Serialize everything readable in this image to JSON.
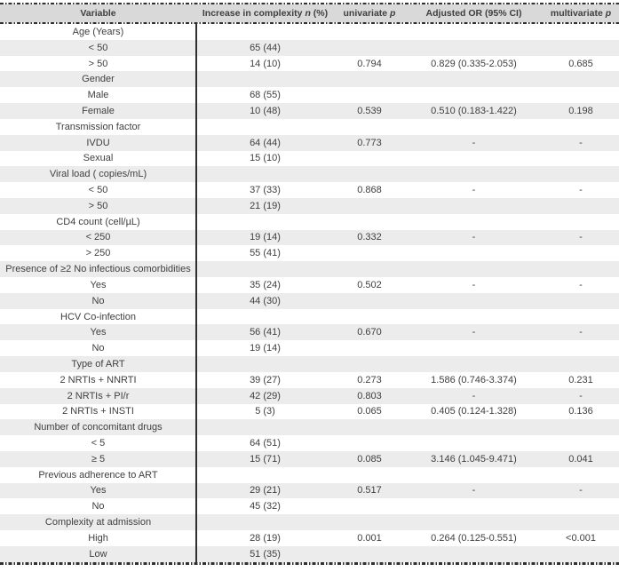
{
  "colors": {
    "header_bg": "#d9d9d9",
    "stripe_bg": "#ececec",
    "text": "#3f3f3f",
    "rule": "#2f2f2f"
  },
  "table": {
    "header": {
      "cols": [
        {
          "pre": "Variable",
          "em": "",
          "post": ""
        },
        {
          "pre": "Increase in complexity ",
          "em": "n",
          "post": " (%)"
        },
        {
          "pre": "univariate ",
          "em": "p",
          "post": ""
        },
        {
          "pre": "Adjusted OR (95% CI)",
          "em": "",
          "post": ""
        },
        {
          "pre": "multivariate ",
          "em": "p",
          "post": ""
        }
      ]
    },
    "rows": [
      {
        "label": "Age (Years)",
        "n": "",
        "univariate_p": "",
        "adjusted_or": "",
        "multivariate_p": ""
      },
      {
        "label": "< 50",
        "n": "65 (44)",
        "univariate_p": "",
        "adjusted_or": "",
        "multivariate_p": ""
      },
      {
        "label": "> 50",
        "n": "14 (10)",
        "univariate_p": "0.794",
        "adjusted_or": "0.829 (0.335-2.053)",
        "multivariate_p": "0.685"
      },
      {
        "label": "Gender",
        "n": "",
        "univariate_p": "",
        "adjusted_or": "",
        "multivariate_p": ""
      },
      {
        "label": "Male",
        "n": "68 (55)",
        "univariate_p": "",
        "adjusted_or": "",
        "multivariate_p": ""
      },
      {
        "label": "Female",
        "n": "10 (48)",
        "univariate_p": "0.539",
        "adjusted_or": "0.510 (0.183-1.422)",
        "multivariate_p": "0.198"
      },
      {
        "label": "Transmission factor",
        "n": "",
        "univariate_p": "",
        "adjusted_or": "",
        "multivariate_p": ""
      },
      {
        "label": "IVDU",
        "n": "64 (44)",
        "univariate_p": "0.773",
        "adjusted_or": "-",
        "multivariate_p": "-"
      },
      {
        "label": "Sexual",
        "n": "15 (10)",
        "univariate_p": "",
        "adjusted_or": "",
        "multivariate_p": ""
      },
      {
        "label": "Viral load ( copies/mL)",
        "n": "",
        "univariate_p": "",
        "adjusted_or": "",
        "multivariate_p": ""
      },
      {
        "label": "< 50",
        "n": "37 (33)",
        "univariate_p": "0.868",
        "adjusted_or": "-",
        "multivariate_p": "-"
      },
      {
        "label": "> 50",
        "n": "21 (19)",
        "univariate_p": "",
        "adjusted_or": "",
        "multivariate_p": ""
      },
      {
        "label": "CD4 count (cell/µL)",
        "n": "",
        "univariate_p": "",
        "adjusted_or": "",
        "multivariate_p": ""
      },
      {
        "label": "< 250",
        "n": "19 (14)",
        "univariate_p": "0.332",
        "adjusted_or": "-",
        "multivariate_p": "-"
      },
      {
        "label": "> 250",
        "n": "55 (41)",
        "univariate_p": "",
        "adjusted_or": "",
        "multivariate_p": ""
      },
      {
        "label": "Presence of ≥2 No infectious comorbidities",
        "n": "",
        "univariate_p": "",
        "adjusted_or": "",
        "multivariate_p": ""
      },
      {
        "label": "Yes",
        "n": "35 (24)",
        "univariate_p": "0.502",
        "adjusted_or": "-",
        "multivariate_p": "-"
      },
      {
        "label": "No",
        "n": "44 (30)",
        "univariate_p": "",
        "adjusted_or": "",
        "multivariate_p": ""
      },
      {
        "label": "HCV Co-infection",
        "n": "",
        "univariate_p": "",
        "adjusted_or": "",
        "multivariate_p": ""
      },
      {
        "label": "Yes",
        "n": "56 (41)",
        "univariate_p": "0.670",
        "adjusted_or": "-",
        "multivariate_p": "-"
      },
      {
        "label": "No",
        "n": "19 (14)",
        "univariate_p": "",
        "adjusted_or": "",
        "multivariate_p": ""
      },
      {
        "label": "Type of ART",
        "n": "",
        "univariate_p": "",
        "adjusted_or": "",
        "multivariate_p": ""
      },
      {
        "label": "2 NRTIs + NNRTI",
        "n": "39 (27)",
        "univariate_p": "0.273",
        "adjusted_or": "1.586 (0.746-3.374)",
        "multivariate_p": "0.231"
      },
      {
        "label": "2 NRTIs + PI/r",
        "n": "42 (29)",
        "univariate_p": "0.803",
        "adjusted_or": "-",
        "multivariate_p": "-"
      },
      {
        "label": "2 NRTIs + INSTI",
        "n": "5 (3)",
        "univariate_p": "0.065",
        "adjusted_or": "0.405 (0.124-1.328)",
        "multivariate_p": "0.136"
      },
      {
        "label": "Number of concomitant drugs",
        "n": "",
        "univariate_p": "",
        "adjusted_or": "",
        "multivariate_p": ""
      },
      {
        "label": "< 5",
        "n": "64 (51)",
        "univariate_p": "",
        "adjusted_or": "",
        "multivariate_p": ""
      },
      {
        "label": "≥ 5",
        "n": "15 (71)",
        "univariate_p": "0.085",
        "adjusted_or": "3.146 (1.045-9.471)",
        "multivariate_p": "0.041"
      },
      {
        "label": "Previous adherence to ART",
        "n": "",
        "univariate_p": "",
        "adjusted_or": "",
        "multivariate_p": ""
      },
      {
        "label": "Yes",
        "n": "29 (21)",
        "univariate_p": "0.517",
        "adjusted_or": "-",
        "multivariate_p": "-"
      },
      {
        "label": "No",
        "n": "45 (32)",
        "univariate_p": "",
        "adjusted_or": "",
        "multivariate_p": ""
      },
      {
        "label": "Complexity at admission",
        "n": "",
        "univariate_p": "",
        "adjusted_or": "",
        "multivariate_p": ""
      },
      {
        "label": "High",
        "n": "28 (19)",
        "univariate_p": "0.001",
        "adjusted_or": "0.264 (0.125-0.551)",
        "multivariate_p": "<0.001"
      },
      {
        "label": "Low",
        "n": "51 (35)",
        "univariate_p": "",
        "adjusted_or": "",
        "multivariate_p": ""
      }
    ]
  }
}
